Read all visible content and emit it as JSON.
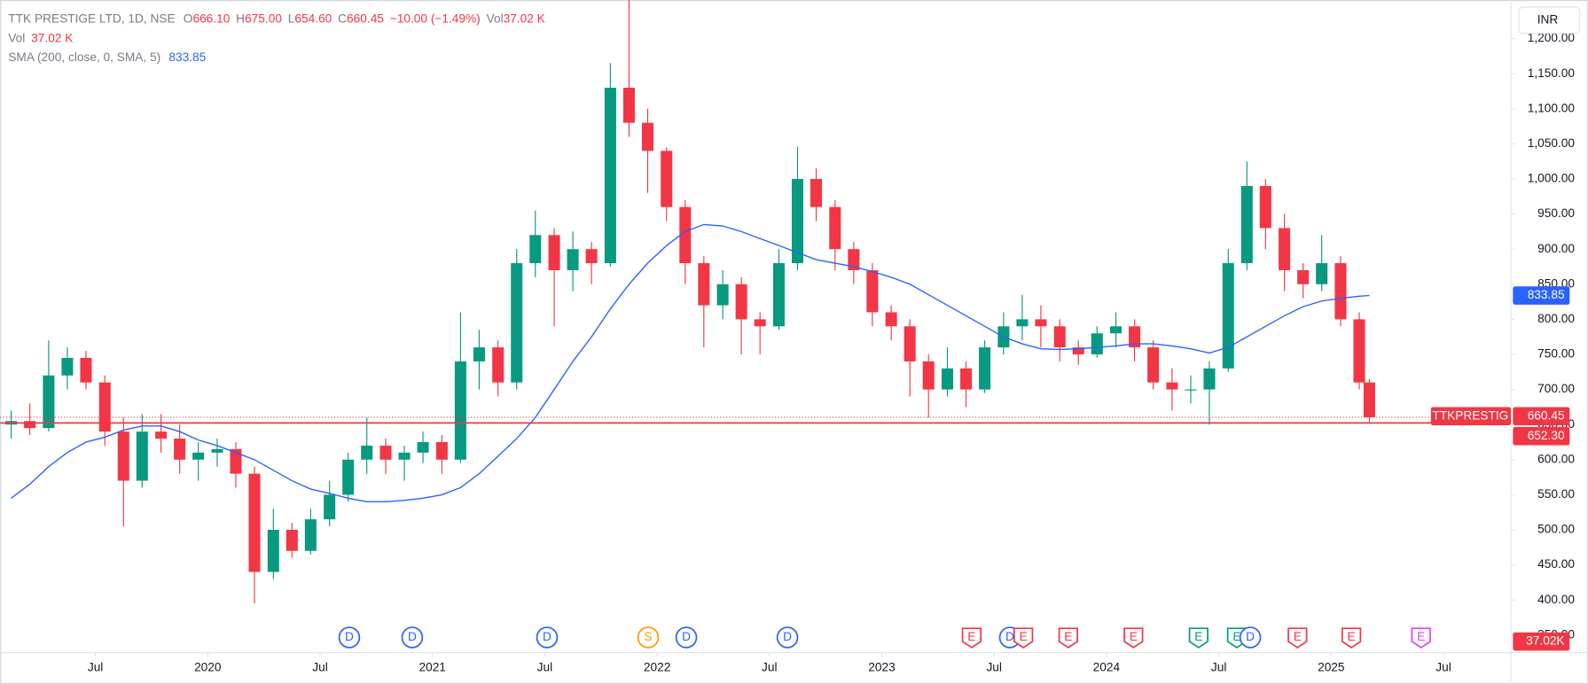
{
  "chart_data": {
    "type": "candlestick",
    "title": "TTK PRESTIGE LTD, 1D, NSE",
    "legend": {
      "o_key": "O",
      "o": "666.10",
      "h_key": "H",
      "h": "675.00",
      "l_key": "L",
      "l": "654.60",
      "c_key": "C",
      "c": "660.45",
      "change": "−10.00 (−1.49%)",
      "vol_key": "Vol",
      "vol": "37.02 K"
    },
    "currency": "INR",
    "volume_label": "37.02K",
    "up_color": "#089981",
    "down_color": "#f23645",
    "x": [
      2019.125,
      2019.208,
      2019.292,
      2019.375,
      2019.458,
      2019.542,
      2019.625,
      2019.708,
      2019.792,
      2019.875,
      2019.958,
      2020.042,
      2020.125,
      2020.208,
      2020.292,
      2020.375,
      2020.458,
      2020.542,
      2020.625,
      2020.708,
      2020.792,
      2020.875,
      2020.958,
      2021.042,
      2021.125,
      2021.208,
      2021.292,
      2021.375,
      2021.458,
      2021.542,
      2021.625,
      2021.708,
      2021.792,
      2021.875,
      2021.958,
      2022.042,
      2022.125,
      2022.208,
      2022.292,
      2022.375,
      2022.458,
      2022.542,
      2022.625,
      2022.708,
      2022.792,
      2022.875,
      2022.958,
      2023.042,
      2023.125,
      2023.208,
      2023.292,
      2023.375,
      2023.458,
      2023.542,
      2023.625,
      2023.708,
      2023.792,
      2023.875,
      2023.958,
      2024.042,
      2024.125,
      2024.208,
      2024.292,
      2024.375,
      2024.458,
      2024.542,
      2024.625,
      2024.708,
      2024.792,
      2024.875,
      2024.958,
      2025.042,
      2025.125,
      2025.17
    ],
    "open": [
      650,
      655,
      645,
      720,
      745,
      710,
      640,
      570,
      640,
      630,
      600,
      610,
      615,
      580,
      440,
      500,
      470,
      515,
      550,
      600,
      620,
      600,
      610,
      625,
      600,
      740,
      760,
      710,
      880,
      920,
      870,
      900,
      880,
      1130,
      1080,
      1040,
      960,
      880,
      820,
      850,
      800,
      790,
      880,
      1000,
      960,
      900,
      870,
      810,
      790,
      740,
      700,
      730,
      700,
      760,
      790,
      800,
      790,
      760,
      750,
      780,
      790,
      760,
      710,
      700,
      700,
      730,
      880,
      990,
      930,
      870,
      850,
      880,
      800,
      710
    ],
    "high": [
      670,
      680,
      770,
      760,
      755,
      720,
      660,
      665,
      665,
      650,
      625,
      630,
      625,
      590,
      530,
      510,
      530,
      570,
      610,
      660,
      630,
      620,
      640,
      635,
      810,
      785,
      770,
      900,
      955,
      930,
      925,
      910,
      1165,
      1255,
      1100,
      1045,
      970,
      890,
      870,
      860,
      810,
      900,
      1046,
      1015,
      970,
      910,
      880,
      820,
      800,
      750,
      760,
      740,
      770,
      810,
      835,
      820,
      800,
      770,
      790,
      810,
      800,
      770,
      730,
      720,
      740,
      900,
      1025,
      1000,
      950,
      880,
      920,
      890,
      810,
      715
    ],
    "low": [
      630,
      635,
      640,
      700,
      700,
      620,
      505,
      560,
      610,
      580,
      570,
      590,
      560,
      395,
      430,
      460,
      465,
      505,
      540,
      580,
      580,
      570,
      595,
      580,
      595,
      700,
      690,
      700,
      860,
      790,
      840,
      850,
      875,
      1060,
      980,
      940,
      850,
      760,
      800,
      750,
      750,
      785,
      870,
      940,
      870,
      850,
      790,
      770,
      690,
      660,
      690,
      675,
      695,
      750,
      770,
      760,
      740,
      735,
      745,
      760,
      740,
      700,
      670,
      680,
      650,
      725,
      870,
      900,
      840,
      830,
      840,
      790,
      700,
      652.3
    ],
    "close": [
      655,
      645,
      720,
      745,
      710,
      640,
      570,
      640,
      630,
      600,
      610,
      615,
      580,
      440,
      500,
      470,
      515,
      550,
      600,
      620,
      600,
      610,
      625,
      600,
      740,
      760,
      710,
      880,
      920,
      870,
      900,
      880,
      1130,
      1080,
      1040,
      960,
      880,
      820,
      850,
      800,
      790,
      880,
      1000,
      960,
      900,
      870,
      810,
      790,
      740,
      700,
      730,
      700,
      760,
      790,
      800,
      790,
      760,
      750,
      780,
      790,
      760,
      710,
      700,
      700,
      730,
      880,
      990,
      930,
      870,
      850,
      880,
      800,
      710,
      660.45
    ],
    "sma": {
      "name": "SMA (200, close, 0, SMA, 5)",
      "color": "#2962ff",
      "last_label": "833.85",
      "values": [
        545,
        565,
        590,
        610,
        625,
        632,
        642,
        648,
        648,
        640,
        628,
        620,
        610,
        600,
        585,
        570,
        558,
        552,
        545,
        540,
        540,
        542,
        545,
        550,
        560,
        580,
        605,
        630,
        660,
        700,
        740,
        775,
        815,
        850,
        880,
        905,
        925,
        935,
        933,
        925,
        915,
        905,
        895,
        885,
        880,
        875,
        868,
        860,
        850,
        835,
        820,
        805,
        790,
        775,
        765,
        758,
        757,
        758,
        760,
        762,
        765,
        765,
        762,
        758,
        752,
        760,
        775,
        790,
        805,
        818,
        826,
        830,
        833,
        833.85
      ]
    },
    "price_lines": [
      {
        "name": "TTKPRESTIG",
        "value": 660.45,
        "label": "660.45",
        "style": "dotted"
      },
      {
        "value": 652.3,
        "label": "652.30",
        "style": "solid"
      }
    ],
    "xlim": [
      2019.076,
      2025.8
    ],
    "ylim": [
      325,
      1255
    ],
    "yticks": [
      {
        "value": 350,
        "label": "350.00"
      },
      {
        "value": 400,
        "label": "400.00"
      },
      {
        "value": 450,
        "label": "450.00"
      },
      {
        "value": 500,
        "label": "500.00"
      },
      {
        "value": 550,
        "label": "550.00"
      },
      {
        "value": 600,
        "label": "600.00"
      },
      {
        "value": 650,
        "label": "650.00"
      },
      {
        "value": 700,
        "label": "700.00"
      },
      {
        "value": 750,
        "label": "750.00"
      },
      {
        "value": 800,
        "label": "800.00"
      },
      {
        "value": 850,
        "label": "850.00"
      },
      {
        "value": 900,
        "label": "900.00"
      },
      {
        "value": 950,
        "label": "950.00"
      },
      {
        "value": 1000,
        "label": "1,000.00"
      },
      {
        "value": 1050,
        "label": "1,050.00"
      },
      {
        "value": 1100,
        "label": "1,100.00"
      },
      {
        "value": 1150,
        "label": "1,150.00"
      },
      {
        "value": 1200,
        "label": "1,200.00"
      }
    ],
    "xticks": [
      {
        "value": 2019.5,
        "label": "Jul"
      },
      2020,
      {
        "value": 2020.5,
        "label": "Jul"
      },
      2021,
      {
        "value": 2021.5,
        "label": "Jul"
      },
      2022,
      {
        "value": 2022.5,
        "label": "Jul"
      },
      2023,
      {
        "value": 2023.5,
        "label": "Jul"
      },
      2024,
      {
        "value": 2024.5,
        "label": "Jul"
      },
      2025,
      {
        "value": 2025.5,
        "label": "Jul"
      }
    ],
    "events": [
      {
        "label": "D",
        "x": 2020.63,
        "color": "#2962ff",
        "shape": "circle"
      },
      {
        "label": "D",
        "x": 2020.91,
        "color": "#2962ff",
        "shape": "circle"
      },
      {
        "label": "D",
        "x": 2021.51,
        "color": "#2962ff",
        "shape": "circle"
      },
      {
        "label": "S",
        "x": 2021.96,
        "color": "#ff9800",
        "shape": "circle"
      },
      {
        "label": "D",
        "x": 2022.13,
        "color": "#2962ff",
        "shape": "circle"
      },
      {
        "label": "D",
        "x": 2022.58,
        "color": "#2962ff",
        "shape": "circle"
      },
      {
        "label": "E",
        "x": 2023.4,
        "color": "#f23645",
        "shape": "badge"
      },
      {
        "label": "D",
        "x": 2023.57,
        "color": "#2962ff",
        "shape": "circle"
      },
      {
        "label": "E",
        "x": 2023.63,
        "color": "#f23645",
        "shape": "badge"
      },
      {
        "label": "E",
        "x": 2023.83,
        "color": "#f23645",
        "shape": "badge"
      },
      {
        "label": "E",
        "x": 2024.12,
        "color": "#f23645",
        "shape": "badge"
      },
      {
        "label": "E",
        "x": 2024.41,
        "color": "#089981",
        "shape": "badge"
      },
      {
        "label": "E",
        "x": 2024.58,
        "color": "#089981",
        "shape": "badge"
      },
      {
        "label": "D",
        "x": 2024.64,
        "color": "#2962ff",
        "shape": "circle"
      },
      {
        "label": "E",
        "x": 2024.85,
        "color": "#f23645",
        "shape": "badge"
      },
      {
        "label": "E",
        "x": 2025.09,
        "color": "#f23645",
        "shape": "badge"
      },
      {
        "label": "E",
        "x": 2025.4,
        "color": "#e040fb",
        "shape": "badge"
      }
    ]
  }
}
